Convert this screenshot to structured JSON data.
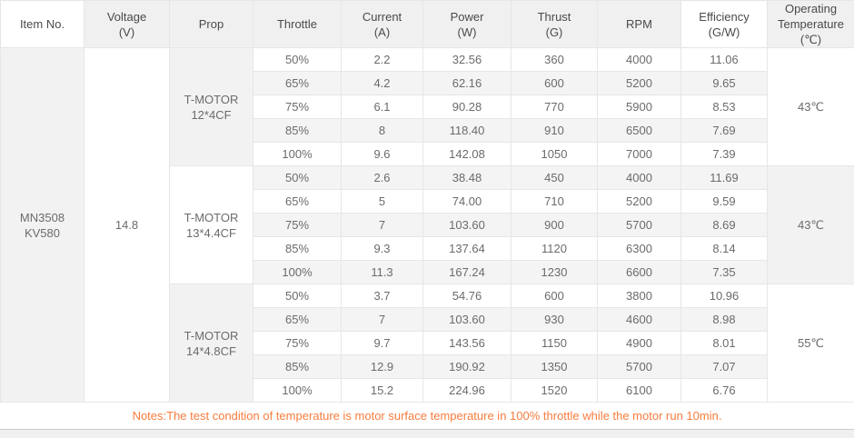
{
  "colors": {
    "header_bg": "#f0f0f0",
    "cell_gray": "#f2f2f2",
    "stripe_gray": "#f4f4f4",
    "border": "#e6e6e6",
    "body_text": "#6b6b6b",
    "header_text": "#4a4a4a",
    "notes_text": "#f87c3e"
  },
  "table": {
    "columns": [
      {
        "key": "item-no",
        "lines": [
          "Item No."
        ]
      },
      {
        "key": "voltage",
        "lines": [
          "Voltage",
          "(V)"
        ]
      },
      {
        "key": "prop",
        "lines": [
          "Prop"
        ]
      },
      {
        "key": "throttle",
        "lines": [
          "Throttle"
        ]
      },
      {
        "key": "current",
        "lines": [
          "Current",
          "(A)"
        ]
      },
      {
        "key": "power",
        "lines": [
          "Power",
          "(W)"
        ]
      },
      {
        "key": "thrust",
        "lines": [
          "Thrust",
          "(G)"
        ]
      },
      {
        "key": "rpm",
        "lines": [
          "RPM"
        ]
      },
      {
        "key": "efficiency",
        "lines": [
          "Efficiency",
          "(G/W)"
        ]
      },
      {
        "key": "operating-temperature",
        "lines": [
          "Operating",
          "Temperature",
          "(℃)"
        ]
      }
    ],
    "item_no_lines": [
      "MN3508",
      "KV580"
    ],
    "voltage": "14.8",
    "blocks": [
      {
        "prop_lines": [
          "T-MOTOR",
          "12*4CF"
        ],
        "temperature": "43℃",
        "rows": [
          {
            "throttle": "50%",
            "current": "2.2",
            "power": "32.56",
            "thrust": "360",
            "rpm": "4000",
            "efficiency": "11.06"
          },
          {
            "throttle": "65%",
            "current": "4.2",
            "power": "62.16",
            "thrust": "600",
            "rpm": "5200",
            "efficiency": "9.65"
          },
          {
            "throttle": "75%",
            "current": "6.1",
            "power": "90.28",
            "thrust": "770",
            "rpm": "5900",
            "efficiency": "8.53"
          },
          {
            "throttle": "85%",
            "current": "8",
            "power": "118.40",
            "thrust": "910",
            "rpm": "6500",
            "efficiency": "7.69"
          },
          {
            "throttle": "100%",
            "current": "9.6",
            "power": "142.08",
            "thrust": "1050",
            "rpm": "7000",
            "efficiency": "7.39"
          }
        ]
      },
      {
        "prop_lines": [
          "T-MOTOR",
          "13*4.4CF"
        ],
        "temperature": "43℃",
        "rows": [
          {
            "throttle": "50%",
            "current": "2.6",
            "power": "38.48",
            "thrust": "450",
            "rpm": "4000",
            "efficiency": "11.69"
          },
          {
            "throttle": "65%",
            "current": "5",
            "power": "74.00",
            "thrust": "710",
            "rpm": "5200",
            "efficiency": "9.59"
          },
          {
            "throttle": "75%",
            "current": "7",
            "power": "103.60",
            "thrust": "900",
            "rpm": "5700",
            "efficiency": "8.69"
          },
          {
            "throttle": "85%",
            "current": "9.3",
            "power": "137.64",
            "thrust": "1120",
            "rpm": "6300",
            "efficiency": "8.14"
          },
          {
            "throttle": "100%",
            "current": "11.3",
            "power": "167.24",
            "thrust": "1230",
            "rpm": "6600",
            "efficiency": "7.35"
          }
        ]
      },
      {
        "prop_lines": [
          "T-MOTOR",
          "14*4.8CF"
        ],
        "temperature": "55℃",
        "rows": [
          {
            "throttle": "50%",
            "current": "3.7",
            "power": "54.76",
            "thrust": "600",
            "rpm": "3800",
            "efficiency": "10.96"
          },
          {
            "throttle": "65%",
            "current": "7",
            "power": "103.60",
            "thrust": "930",
            "rpm": "4600",
            "efficiency": "8.98"
          },
          {
            "throttle": "75%",
            "current": "9.7",
            "power": "143.56",
            "thrust": "1150",
            "rpm": "4900",
            "efficiency": "8.01"
          },
          {
            "throttle": "85%",
            "current": "12.9",
            "power": "190.92",
            "thrust": "1350",
            "rpm": "5700",
            "efficiency": "7.07"
          },
          {
            "throttle": "100%",
            "current": "15.2",
            "power": "224.96",
            "thrust": "1520",
            "rpm": "6100",
            "efficiency": "6.76"
          }
        ]
      }
    ]
  },
  "notes": {
    "text": "Notes:The test condition of temperature is motor surface temperature in 100% throttle while the motor run 10min."
  },
  "chart_data": {
    "type": "table",
    "title": "Motor test data MN3508 KV580",
    "columns": [
      "Item No.",
      "Voltage (V)",
      "Prop",
      "Throttle",
      "Current (A)",
      "Power (W)",
      "Thrust (G)",
      "RPM",
      "Efficiency (G/W)",
      "Operating Temperature (℃)"
    ],
    "item_no": "MN3508 KV580",
    "voltage_v": 14.8,
    "groups": [
      {
        "prop": "T-MOTOR 12*4CF",
        "operating_temperature_c": 43,
        "throttle": [
          "50%",
          "65%",
          "75%",
          "85%",
          "100%"
        ],
        "current_a": [
          2.2,
          4.2,
          6.1,
          8,
          9.6
        ],
        "power_w": [
          32.56,
          62.16,
          90.28,
          118.4,
          142.08
        ],
        "thrust_g": [
          360,
          600,
          770,
          910,
          1050
        ],
        "rpm": [
          4000,
          5200,
          5900,
          6500,
          7000
        ],
        "efficiency_gw": [
          11.06,
          9.65,
          8.53,
          7.69,
          7.39
        ]
      },
      {
        "prop": "T-MOTOR 13*4.4CF",
        "operating_temperature_c": 43,
        "throttle": [
          "50%",
          "65%",
          "75%",
          "85%",
          "100%"
        ],
        "current_a": [
          2.6,
          5,
          7,
          9.3,
          11.3
        ],
        "power_w": [
          38.48,
          74.0,
          103.6,
          137.64,
          167.24
        ],
        "thrust_g": [
          450,
          710,
          900,
          1120,
          1230
        ],
        "rpm": [
          4000,
          5200,
          5700,
          6300,
          6600
        ],
        "efficiency_gw": [
          11.69,
          9.59,
          8.69,
          8.14,
          7.35
        ]
      },
      {
        "prop": "T-MOTOR 14*4.8CF",
        "operating_temperature_c": 55,
        "throttle": [
          "50%",
          "65%",
          "75%",
          "85%",
          "100%"
        ],
        "current_a": [
          3.7,
          7,
          9.7,
          12.9,
          15.2
        ],
        "power_w": [
          54.76,
          103.6,
          143.56,
          190.92,
          224.96
        ],
        "thrust_g": [
          600,
          930,
          1150,
          1350,
          1520
        ],
        "rpm": [
          3800,
          4600,
          4900,
          5700,
          6100
        ],
        "efficiency_gw": [
          10.96,
          8.98,
          8.01,
          7.07,
          6.76
        ]
      }
    ],
    "notes": "Notes:The test condition of temperature is motor surface temperature in 100% throttle while the motor run 10min."
  }
}
